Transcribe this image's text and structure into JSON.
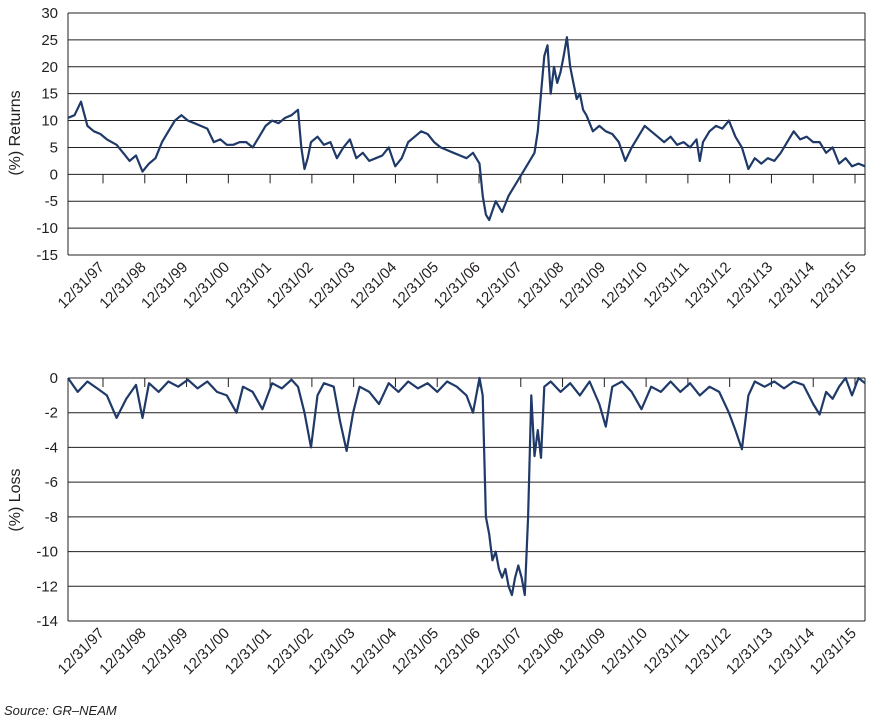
{
  "colors": {
    "line": "#1f3a68",
    "grid": "#231f20",
    "text": "#231f20"
  },
  "source": "Source: GR–NEAM",
  "chart_data": [
    {
      "type": "line",
      "ylabel": "(%) Returns",
      "ylim": [
        -15,
        30
      ],
      "yticks": [
        30,
        25,
        20,
        15,
        10,
        5,
        0,
        -5,
        -10,
        -15
      ],
      "grid": "horizontal",
      "x_categories": [
        "12/31/97",
        "12/31/98",
        "12/31/99",
        "12/31/00",
        "12/31/01",
        "12/31/02",
        "12/31/03",
        "12/31/04",
        "12/31/05",
        "12/31/06",
        "12/31/07",
        "12/31/08",
        "12/31/09",
        "12/31/10",
        "12/31/11",
        "12/31/12",
        "12/31/13",
        "12/31/14",
        "12/31/15"
      ],
      "series": [
        {
          "values": [
            [
              0,
              10.5
            ],
            [
              0.2,
              11
            ],
            [
              0.4,
              13.5
            ],
            [
              0.6,
              9
            ],
            [
              0.8,
              8
            ],
            [
              1,
              7.5
            ],
            [
              1.2,
              6.5
            ],
            [
              1.5,
              5.5
            ],
            [
              1.7,
              4
            ],
            [
              1.9,
              2.5
            ],
            [
              2.1,
              3.5
            ],
            [
              2.3,
              0.5
            ],
            [
              2.5,
              2
            ],
            [
              2.7,
              3
            ],
            [
              2.9,
              6
            ],
            [
              3.1,
              8
            ],
            [
              3.3,
              10
            ],
            [
              3.5,
              11
            ],
            [
              3.7,
              10
            ],
            [
              3.9,
              9.5
            ],
            [
              4.1,
              9
            ],
            [
              4.3,
              8.5
            ],
            [
              4.5,
              6
            ],
            [
              4.7,
              6.5
            ],
            [
              4.9,
              5.5
            ],
            [
              5.1,
              5.5
            ],
            [
              5.3,
              6
            ],
            [
              5.5,
              6
            ],
            [
              5.7,
              5
            ],
            [
              5.9,
              7
            ],
            [
              6.1,
              9
            ],
            [
              6.3,
              10
            ],
            [
              6.5,
              9.5
            ],
            [
              6.7,
              10.5
            ],
            [
              6.9,
              11
            ],
            [
              7.1,
              12
            ],
            [
              7.2,
              5
            ],
            [
              7.3,
              1
            ],
            [
              7.4,
              3
            ],
            [
              7.5,
              6
            ],
            [
              7.7,
              7
            ],
            [
              7.9,
              5.5
            ],
            [
              8.1,
              6
            ],
            [
              8.3,
              3
            ],
            [
              8.5,
              5
            ],
            [
              8.7,
              6.5
            ],
            [
              8.9,
              3
            ],
            [
              9.1,
              4
            ],
            [
              9.3,
              2.5
            ],
            [
              9.5,
              3
            ],
            [
              9.7,
              3.5
            ],
            [
              9.9,
              5
            ],
            [
              10.1,
              1.5
            ],
            [
              10.3,
              3
            ],
            [
              10.5,
              6
            ],
            [
              10.7,
              7
            ],
            [
              10.9,
              8
            ],
            [
              11.1,
              7.5
            ],
            [
              11.3,
              6
            ],
            [
              11.5,
              5
            ],
            [
              11.7,
              4.5
            ],
            [
              11.9,
              4
            ],
            [
              12.1,
              3.5
            ],
            [
              12.3,
              3
            ],
            [
              12.5,
              4
            ],
            [
              12.7,
              2
            ],
            [
              12.8,
              -4
            ],
            [
              12.9,
              -7.5
            ],
            [
              13,
              -8.5
            ],
            [
              13.2,
              -5
            ],
            [
              13.4,
              -7
            ],
            [
              13.6,
              -4
            ],
            [
              13.8,
              -2
            ],
            [
              14,
              0
            ],
            [
              14.2,
              2
            ],
            [
              14.4,
              4
            ],
            [
              14.5,
              8
            ],
            [
              14.6,
              15
            ],
            [
              14.7,
              22
            ],
            [
              14.8,
              24
            ],
            [
              14.9,
              15
            ],
            [
              15,
              20
            ],
            [
              15.1,
              17
            ],
            [
              15.2,
              19
            ],
            [
              15.3,
              22
            ],
            [
              15.4,
              25.5
            ],
            [
              15.5,
              20
            ],
            [
              15.6,
              17
            ],
            [
              15.7,
              14
            ],
            [
              15.8,
              15
            ],
            [
              15.9,
              12
            ],
            [
              16,
              11
            ],
            [
              16.2,
              8
            ],
            [
              16.4,
              9
            ],
            [
              16.6,
              8
            ],
            [
              16.8,
              7.5
            ],
            [
              17,
              6
            ],
            [
              17.2,
              2.5
            ],
            [
              17.4,
              5
            ],
            [
              17.6,
              7
            ],
            [
              17.8,
              9
            ],
            [
              18,
              8
            ],
            [
              18.2,
              7
            ],
            [
              18.4,
              6
            ],
            [
              18.6,
              7
            ],
            [
              18.8,
              5.5
            ],
            [
              19,
              6
            ],
            [
              19.2,
              5
            ],
            [
              19.4,
              6.5
            ],
            [
              19.5,
              2.5
            ],
            [
              19.6,
              6
            ],
            [
              19.8,
              8
            ],
            [
              20,
              9
            ],
            [
              20.2,
              8.5
            ],
            [
              20.4,
              10
            ],
            [
              20.6,
              7
            ],
            [
              20.8,
              5
            ],
            [
              21,
              1
            ],
            [
              21.2,
              3
            ],
            [
              21.4,
              2
            ],
            [
              21.6,
              3
            ],
            [
              21.8,
              2.5
            ],
            [
              22,
              4
            ],
            [
              22.2,
              6
            ],
            [
              22.4,
              8
            ],
            [
              22.6,
              6.5
            ],
            [
              22.8,
              7
            ],
            [
              23,
              6
            ],
            [
              23.2,
              6
            ],
            [
              23.4,
              4
            ],
            [
              23.6,
              5
            ],
            [
              23.8,
              2
            ],
            [
              24,
              3
            ],
            [
              24.2,
              1.5
            ],
            [
              24.4,
              2
            ],
            [
              24.6,
              1.5
            ]
          ]
        }
      ]
    },
    {
      "type": "line",
      "ylabel": "(%) Loss",
      "ylim": [
        -14,
        0
      ],
      "yticks": [
        0,
        -2,
        -4,
        -6,
        -8,
        -10,
        -12,
        -14
      ],
      "grid": "horizontal",
      "x_categories": [
        "12/31/97",
        "12/31/98",
        "12/31/99",
        "12/31/00",
        "12/31/01",
        "12/31/02",
        "12/31/03",
        "12/31/04",
        "12/31/05",
        "12/31/06",
        "12/31/07",
        "12/31/08",
        "12/31/09",
        "12/31/10",
        "12/31/11",
        "12/31/12",
        "12/31/13",
        "12/31/14",
        "12/31/15"
      ],
      "series": [
        {
          "values": [
            [
              0,
              0
            ],
            [
              0.3,
              -0.8
            ],
            [
              0.6,
              -0.2
            ],
            [
              0.9,
              -0.6
            ],
            [
              1.2,
              -1
            ],
            [
              1.5,
              -2.3
            ],
            [
              1.8,
              -1.2
            ],
            [
              2.1,
              -0.4
            ],
            [
              2.3,
              -2.3
            ],
            [
              2.5,
              -0.3
            ],
            [
              2.8,
              -0.8
            ],
            [
              3.1,
              -0.2
            ],
            [
              3.4,
              -0.5
            ],
            [
              3.7,
              -0.1
            ],
            [
              4,
              -0.6
            ],
            [
              4.3,
              -0.2
            ],
            [
              4.6,
              -0.8
            ],
            [
              4.9,
              -1
            ],
            [
              5.2,
              -2
            ],
            [
              5.4,
              -0.5
            ],
            [
              5.7,
              -0.8
            ],
            [
              6,
              -1.8
            ],
            [
              6.3,
              -0.3
            ],
            [
              6.6,
              -0.6
            ],
            [
              6.9,
              -0.1
            ],
            [
              7.1,
              -0.5
            ],
            [
              7.3,
              -2
            ],
            [
              7.5,
              -4
            ],
            [
              7.7,
              -1
            ],
            [
              7.9,
              -0.3
            ],
            [
              8.2,
              -0.5
            ],
            [
              8.4,
              -2.5
            ],
            [
              8.6,
              -4.2
            ],
            [
              8.8,
              -2
            ],
            [
              9,
              -0.5
            ],
            [
              9.3,
              -0.8
            ],
            [
              9.6,
              -1.5
            ],
            [
              9.9,
              -0.3
            ],
            [
              10.2,
              -0.8
            ],
            [
              10.5,
              -0.2
            ],
            [
              10.8,
              -0.6
            ],
            [
              11.1,
              -0.3
            ],
            [
              11.4,
              -0.8
            ],
            [
              11.7,
              -0.2
            ],
            [
              12,
              -0.5
            ],
            [
              12.3,
              -1
            ],
            [
              12.5,
              -2
            ],
            [
              12.7,
              0
            ],
            [
              12.8,
              -1
            ],
            [
              12.9,
              -8
            ],
            [
              13,
              -9
            ],
            [
              13.1,
              -10.5
            ],
            [
              13.2,
              -10
            ],
            [
              13.3,
              -11
            ],
            [
              13.4,
              -11.5
            ],
            [
              13.5,
              -11
            ],
            [
              13.6,
              -12
            ],
            [
              13.7,
              -12.5
            ],
            [
              13.8,
              -11.5
            ],
            [
              13.9,
              -10.8
            ],
            [
              14,
              -11.5
            ],
            [
              14.1,
              -12.5
            ],
            [
              14.2,
              -8
            ],
            [
              14.3,
              -1
            ],
            [
              14.4,
              -4.5
            ],
            [
              14.5,
              -3
            ],
            [
              14.6,
              -4.6
            ],
            [
              14.7,
              -0.5
            ],
            [
              14.9,
              -0.2
            ],
            [
              15.2,
              -0.8
            ],
            [
              15.5,
              -0.3
            ],
            [
              15.8,
              -1
            ],
            [
              16.1,
              -0.2
            ],
            [
              16.4,
              -1.5
            ],
            [
              16.6,
              -2.8
            ],
            [
              16.8,
              -0.5
            ],
            [
              17.1,
              -0.2
            ],
            [
              17.4,
              -0.8
            ],
            [
              17.7,
              -1.8
            ],
            [
              18,
              -0.5
            ],
            [
              18.3,
              -0.8
            ],
            [
              18.6,
              -0.2
            ],
            [
              18.9,
              -0.8
            ],
            [
              19.2,
              -0.3
            ],
            [
              19.5,
              -1
            ],
            [
              19.8,
              -0.5
            ],
            [
              20.1,
              -0.8
            ],
            [
              20.4,
              -2
            ],
            [
              20.6,
              -3
            ],
            [
              20.8,
              -4.1
            ],
            [
              21,
              -1
            ],
            [
              21.2,
              -0.2
            ],
            [
              21.5,
              -0.5
            ],
            [
              21.8,
              -0.2
            ],
            [
              22.1,
              -0.6
            ],
            [
              22.4,
              -0.2
            ],
            [
              22.7,
              -0.4
            ],
            [
              23,
              -1.5
            ],
            [
              23.2,
              -2.1
            ],
            [
              23.4,
              -0.8
            ],
            [
              23.6,
              -1.2
            ],
            [
              23.8,
              -0.5
            ],
            [
              24,
              0
            ],
            [
              24.2,
              -1
            ],
            [
              24.4,
              0
            ],
            [
              24.6,
              -0.3
            ]
          ]
        }
      ]
    }
  ]
}
